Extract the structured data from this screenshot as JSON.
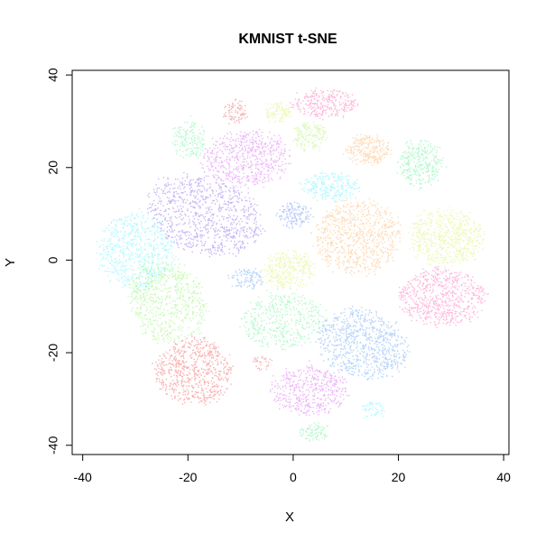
{
  "chart_data": {
    "type": "scatter",
    "title": "KMNIST t-SNE",
    "xlabel": "X",
    "ylabel": "Y",
    "xlim": [
      -42,
      41
    ],
    "ylim": [
      -42,
      41
    ],
    "x_ticks": [
      -40,
      -20,
      0,
      20,
      40
    ],
    "y_ticks": [
      -40,
      -20,
      0,
      20,
      40
    ],
    "x_tick_labels": [
      "-40",
      "-20",
      "0",
      "20",
      "40"
    ],
    "y_tick_labels": [
      "-40",
      "-20",
      "0",
      "20",
      "40"
    ],
    "grid": false,
    "legend": "none",
    "point_opacity": 0.35,
    "clusters": [
      {
        "color": "#6633e6",
        "cx": -17,
        "cy": 10,
        "rx": 11,
        "ry": 8,
        "rot": -25,
        "n": 900
      },
      {
        "color": "#33eeff",
        "cx": -30,
        "cy": 2,
        "rx": 7,
        "ry": 8,
        "rot": 0,
        "n": 650
      },
      {
        "color": "#66f033",
        "cx": -24,
        "cy": -9,
        "rx": 7,
        "ry": 9,
        "rot": 15,
        "n": 650
      },
      {
        "color": "#ee2222",
        "cx": -19,
        "cy": -24,
        "rx": 7,
        "ry": 7,
        "rot": 0,
        "n": 650
      },
      {
        "color": "#cc33ee",
        "cx": -9,
        "cy": 22,
        "rx": 8,
        "ry": 6,
        "rot": 0,
        "n": 600
      },
      {
        "color": "#ccee33",
        "cx": -1,
        "cy": -2,
        "rx": 5,
        "ry": 4,
        "rot": 0,
        "n": 320
      },
      {
        "color": "#33ee77",
        "cx": -2,
        "cy": -13,
        "rx": 8,
        "ry": 6,
        "rot": 0,
        "n": 450
      },
      {
        "color": "#cc33ee",
        "cx": 3,
        "cy": -28,
        "rx": 7,
        "ry": 5,
        "rot": 0,
        "n": 480
      },
      {
        "color": "#3388ee",
        "cx": 13,
        "cy": -18,
        "rx": 9,
        "ry": 7,
        "rot": -25,
        "n": 800
      },
      {
        "color": "#ff9933",
        "cx": 12,
        "cy": 5,
        "rx": 8,
        "ry": 8,
        "rot": 0,
        "n": 750
      },
      {
        "color": "#ff3399",
        "cx": 28,
        "cy": -8,
        "rx": 8,
        "ry": 6,
        "rot": 0,
        "n": 650
      },
      {
        "color": "#ccee33",
        "cx": 29,
        "cy": 5,
        "rx": 7,
        "ry": 6,
        "rot": 0,
        "n": 600
      },
      {
        "color": "#33ee77",
        "cx": 24,
        "cy": 21,
        "rx": 4,
        "ry": 5,
        "rot": 0,
        "n": 320
      },
      {
        "color": "#ff9933",
        "cx": 14,
        "cy": 24,
        "rx": 4,
        "ry": 3,
        "rot": 0,
        "n": 260
      },
      {
        "color": "#33eeff",
        "cx": 7,
        "cy": 16,
        "rx": 5,
        "ry": 3,
        "rot": 0,
        "n": 260
      },
      {
        "color": "#ff3399",
        "cx": 6,
        "cy": 34,
        "rx": 6,
        "ry": 3,
        "rot": 0,
        "n": 280
      },
      {
        "color": "#99ee33",
        "cx": 3,
        "cy": 27,
        "rx": 3,
        "ry": 3,
        "rot": 0,
        "n": 160
      },
      {
        "color": "#ccee33",
        "cx": -3,
        "cy": 32,
        "rx": 2.5,
        "ry": 2,
        "rot": 0,
        "n": 110
      },
      {
        "color": "#33ee77",
        "cx": -20,
        "cy": 26,
        "rx": 3,
        "ry": 4,
        "rot": 0,
        "n": 160
      },
      {
        "color": "#ee2222",
        "cx": -11,
        "cy": 32,
        "rx": 2,
        "ry": 2.5,
        "rot": 0,
        "n": 80
      },
      {
        "color": "#3366ee",
        "cx": 0,
        "cy": 10,
        "rx": 3,
        "ry": 2.5,
        "rot": 0,
        "n": 140
      },
      {
        "color": "#3388ee",
        "cx": -9,
        "cy": -4,
        "rx": 3,
        "ry": 2,
        "rot": 0,
        "n": 110
      },
      {
        "color": "#33ee77",
        "cx": 4,
        "cy": -37,
        "rx": 3,
        "ry": 1.8,
        "rot": 0,
        "n": 90
      },
      {
        "color": "#33eeff",
        "cx": 15,
        "cy": -32,
        "rx": 2.2,
        "ry": 1.5,
        "rot": 0,
        "n": 50
      },
      {
        "color": "#ee2222",
        "cx": -6,
        "cy": -22,
        "rx": 1.5,
        "ry": 1.5,
        "rot": 0,
        "n": 30
      }
    ]
  }
}
